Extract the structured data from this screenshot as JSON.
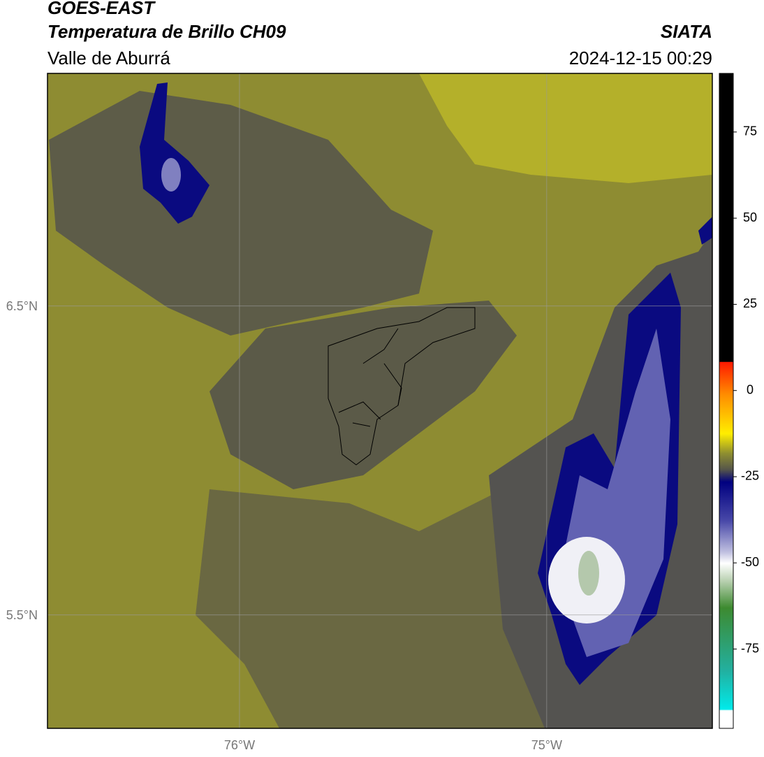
{
  "header": {
    "title": "GOES-EAST",
    "subtitle": "Temperatura de Brillo CH09",
    "region": "Valle de Aburrá",
    "source": "SIATA",
    "timestamp": "2024-12-15 00:29"
  },
  "map": {
    "xlim": [
      -76.625,
      -74.461
    ],
    "ylim": [
      5.133,
      7.253
    ],
    "xticks": [
      {
        "value": -76,
        "label": "76°W"
      },
      {
        "value": -75,
        "label": "75°W"
      }
    ],
    "yticks": [
      {
        "value": 6.5,
        "label": "6.5°N"
      },
      {
        "value": 5.5,
        "label": "5.5°N"
      }
    ],
    "grid": true
  },
  "colorbar": {
    "clim": [
      -98,
      92
    ],
    "ticks": [
      75,
      50,
      25,
      0,
      -25,
      -50,
      -75
    ]
  }
}
